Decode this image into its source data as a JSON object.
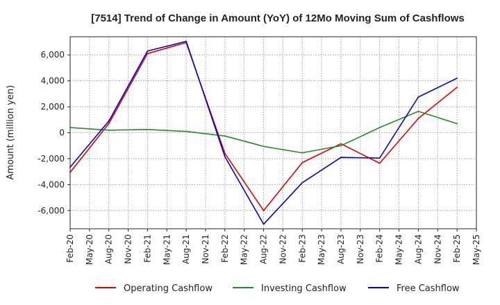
{
  "chart_data": {
    "type": "line",
    "title": "[7514]  Trend of Change in Amount (YoY) of 12Mo Moving Sum of Cashflows",
    "xlabel": "",
    "ylabel": "Amount (million yen)",
    "categories": [
      "Feb-20",
      "May-20",
      "Aug-20",
      "Nov-20",
      "Feb-21",
      "May-21",
      "Aug-21",
      "Nov-21",
      "Feb-22",
      "May-22",
      "Aug-22",
      "Nov-22",
      "Feb-23",
      "May-23",
      "Aug-23",
      "Nov-23",
      "Feb-24",
      "May-24",
      "Aug-24",
      "Nov-24",
      "Feb-25",
      "May-25"
    ],
    "ylim": [
      -7400,
      7400
    ],
    "yticks": [
      -6000,
      -4000,
      -2000,
      0,
      2000,
      4000,
      6000
    ],
    "ytick_labels": [
      "-6,000",
      "-4,000",
      "-2,000",
      "0",
      "2,000",
      "4,000",
      "6,000"
    ],
    "grid": true,
    "legend_position": "bottom",
    "series": [
      {
        "name": "Operating Cashflow",
        "color": "#e00000",
        "values": [
          -3050,
          null,
          700,
          null,
          6100,
          null,
          6950,
          null,
          -1600,
          null,
          -6000,
          null,
          -2300,
          null,
          -850,
          null,
          -2350,
          null,
          1100,
          null,
          3500,
          null
        ]
      },
      {
        "name": "Investing Cashflow",
        "color": "#228b22",
        "values": [
          400,
          null,
          200,
          null,
          250,
          null,
          100,
          null,
          -250,
          null,
          -1050,
          null,
          -1550,
          null,
          -1000,
          null,
          400,
          null,
          1650,
          null,
          700,
          null
        ]
      },
      {
        "name": "Free Cashflow",
        "color": "#0000cc",
        "values": [
          -2650,
          null,
          900,
          null,
          6300,
          null,
          7050,
          null,
          -1850,
          null,
          -7050,
          null,
          -3850,
          null,
          -1900,
          null,
          -1950,
          null,
          2750,
          null,
          4200,
          null
        ]
      }
    ]
  }
}
